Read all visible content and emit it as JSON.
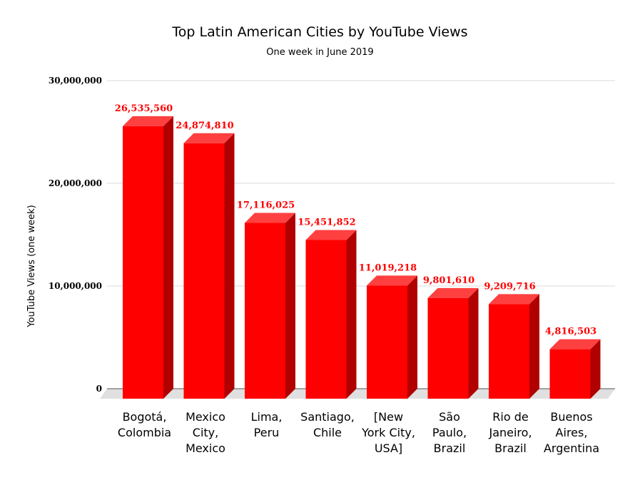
{
  "chart_data": {
    "type": "bar",
    "title": "Top Latin American Cities by YouTube Views",
    "subtitle": "One week in June 2019",
    "xlabel": "",
    "ylabel": "YouTube Views (one week)",
    "ylim": [
      0,
      30000000
    ],
    "yticks": [
      0,
      10000000,
      20000000,
      30000000
    ],
    "ytick_labels": [
      "0",
      "10,000,000",
      "20,000,000",
      "30,000,000"
    ],
    "grid": true,
    "style": "3d",
    "colors": {
      "bar_front": "#ff0000",
      "bar_top": "#ff4040",
      "bar_side": "#b00000",
      "data_label": "#ff0000",
      "grid": "#d9d9d9",
      "floor": "#e0e0e0"
    },
    "categories": [
      [
        "Bogotá,",
        "Colombia"
      ],
      [
        "Mexico",
        "City,",
        "Mexico"
      ],
      [
        "Lima,",
        "Peru"
      ],
      [
        "Santiago,",
        "Chile"
      ],
      [
        "[New",
        "York City,",
        "USA]"
      ],
      [
        "São",
        "Paulo,",
        "Brazil"
      ],
      [
        "Rio de",
        "Janeiro,",
        "Brazil"
      ],
      [
        "Buenos",
        "Aires,",
        "Argentina"
      ]
    ],
    "values": [
      26535560,
      24874810,
      17116025,
      15451852,
      11019218,
      9801610,
      9209716,
      4816503
    ],
    "data_labels": [
      "26,535,560",
      "24,874,810",
      "17,116,025",
      "15,451,852",
      "11,019,218",
      "9,801,610",
      "9,209,716",
      "4,816,503"
    ]
  }
}
